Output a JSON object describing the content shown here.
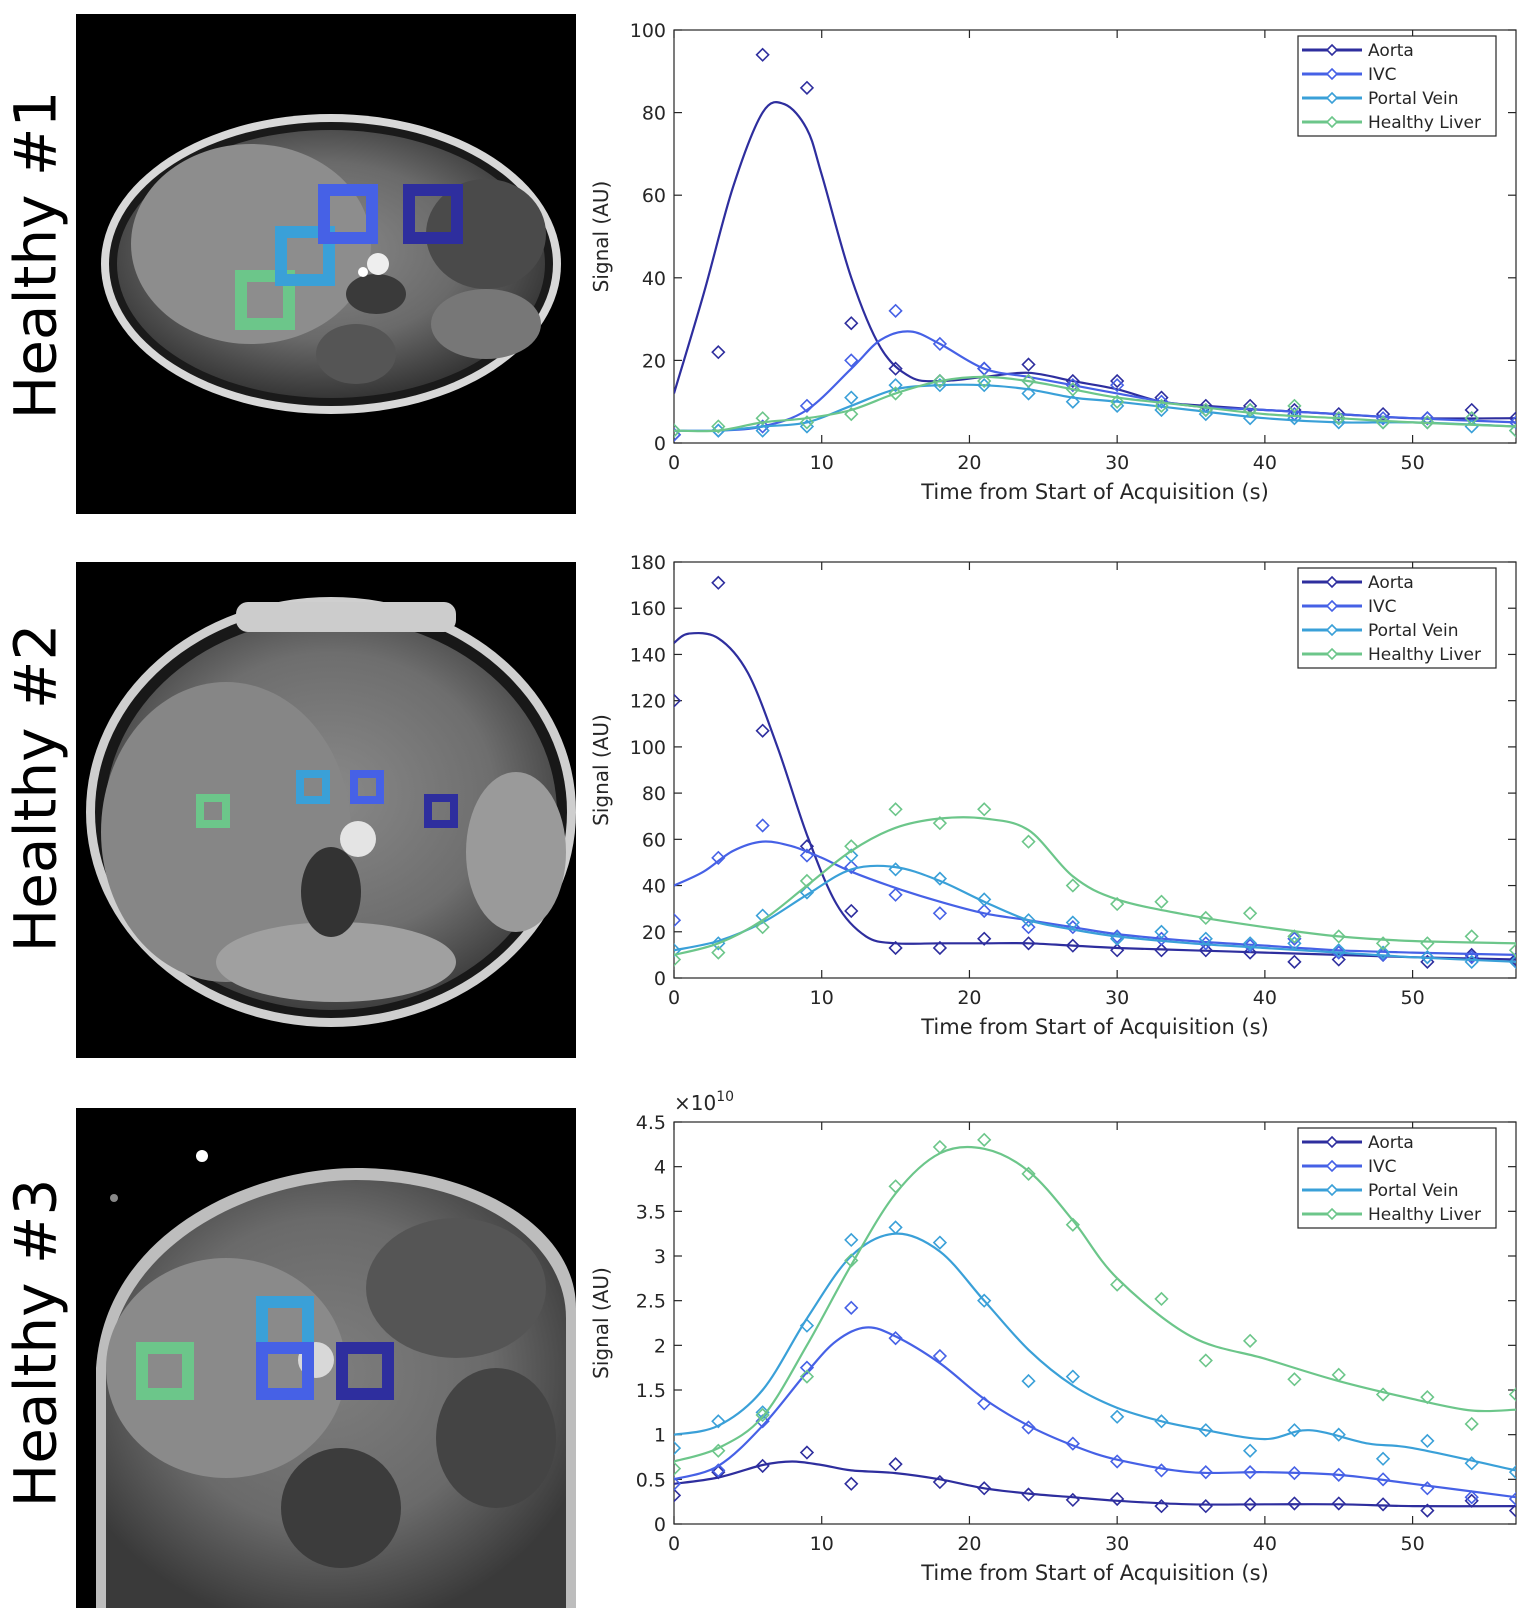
{
  "rows": [
    {
      "label": "Healthy #1"
    },
    {
      "label": "Healthy #2"
    },
    {
      "label": "Healthy #3"
    }
  ],
  "roi_colors": {
    "aorta": "#2e2e9e",
    "ivc": "#4661e6",
    "portal": "#3aa0d8",
    "liver": "#6cc68a"
  },
  "chart_data": [
    {
      "type": "line",
      "title": "",
      "xlabel": "Time from Start of Acquisition (s)",
      "ylabel": "Signal (AU)",
      "exponent_label": "",
      "xlim": [
        0,
        57
      ],
      "ylim": [
        0,
        100
      ],
      "xticks": [
        0,
        10,
        20,
        30,
        40,
        50
      ],
      "yticks": [
        0,
        20,
        40,
        60,
        80,
        100
      ],
      "ytick_labels": [
        "0",
        "20",
        "40",
        "60",
        "80",
        "100"
      ],
      "legend": [
        "Aorta",
        "IVC",
        "Portal Vein",
        "Healthy Liver"
      ],
      "legend_position": "top-right",
      "series": [
        {
          "name": "Aorta",
          "color": "#2e2e9e",
          "measured_x": [
            0,
            3,
            6,
            9,
            12,
            15,
            18,
            21,
            24,
            27,
            30,
            33,
            36,
            39,
            42,
            45,
            48,
            51,
            54,
            57
          ],
          "measured_y": [
            2,
            22,
            94,
            86,
            29,
            18,
            15,
            18,
            19,
            15,
            15,
            11,
            9,
            9,
            8,
            7,
            7,
            6,
            8,
            6
          ],
          "fit_x": [
            0,
            2,
            4,
            6,
            7.5,
            9,
            10,
            12,
            14,
            16,
            18,
            21,
            24,
            27,
            30,
            33,
            36,
            40,
            45,
            50,
            57
          ],
          "fit_y": [
            12,
            36,
            62,
            80,
            82,
            76,
            65,
            40,
            23,
            16,
            15,
            16,
            17,
            15,
            13,
            10,
            9,
            8,
            7,
            6,
            6
          ]
        },
        {
          "name": "IVC",
          "color": "#4661e6",
          "measured_x": [
            0,
            3,
            6,
            9,
            12,
            15,
            18,
            21,
            24,
            27,
            30,
            33,
            36,
            39,
            42,
            45,
            48,
            51,
            54,
            57
          ],
          "measured_y": [
            2,
            3,
            4,
            9,
            20,
            32,
            24,
            18,
            15,
            14,
            14,
            10,
            8,
            8,
            7,
            6,
            6,
            6,
            6,
            5
          ],
          "fit_x": [
            0,
            3,
            6,
            9,
            12,
            14,
            16,
            18,
            21,
            24,
            27,
            30,
            35,
            40,
            45,
            50,
            57
          ],
          "fit_y": [
            3,
            3,
            4,
            8,
            18,
            25,
            27,
            24,
            18,
            16,
            14,
            12,
            9,
            8,
            7,
            6,
            5
          ]
        },
        {
          "name": "Portal Vein",
          "color": "#3aa0d8",
          "measured_x": [
            0,
            3,
            6,
            9,
            12,
            15,
            18,
            21,
            24,
            27,
            30,
            33,
            36,
            39,
            42,
            45,
            48,
            51,
            54,
            57
          ],
          "measured_y": [
            3,
            3,
            3,
            4,
            11,
            14,
            14,
            14,
            12,
            10,
            9,
            8,
            7,
            6,
            6,
            5,
            5,
            5,
            4,
            3
          ],
          "fit_x": [
            0,
            3,
            6,
            9,
            12,
            15,
            18,
            21,
            24,
            27,
            30,
            35,
            40,
            45,
            50,
            57
          ],
          "fit_y": [
            3,
            3,
            4,
            5,
            9,
            13,
            14,
            14,
            13,
            11,
            10,
            8,
            6,
            5,
            5,
            4
          ]
        },
        {
          "name": "Healthy Liver",
          "color": "#6cc68a",
          "measured_x": [
            0,
            3,
            6,
            9,
            12,
            15,
            18,
            21,
            24,
            27,
            30,
            33,
            36,
            39,
            42,
            45,
            48,
            51,
            54,
            57
          ],
          "measured_y": [
            3,
            4,
            6,
            5,
            7,
            12,
            15,
            15,
            15,
            13,
            10,
            9,
            8,
            8,
            9,
            6,
            5,
            5,
            6,
            3
          ],
          "fit_x": [
            0,
            3,
            6,
            9,
            12,
            15,
            18,
            21,
            24,
            27,
            30,
            35,
            40,
            45,
            50,
            57
          ],
          "fit_y": [
            3,
            3,
            5,
            6,
            8,
            12,
            15,
            16,
            15,
            13,
            11,
            9,
            7,
            6,
            5,
            4
          ]
        }
      ]
    },
    {
      "type": "line",
      "title": "",
      "xlabel": "Time from Start of Acquisition (s)",
      "ylabel": "Signal (AU)",
      "exponent_label": "",
      "xlim": [
        0,
        57
      ],
      "ylim": [
        0,
        180
      ],
      "xticks": [
        0,
        10,
        20,
        30,
        40,
        50
      ],
      "yticks": [
        0,
        20,
        40,
        60,
        80,
        100,
        120,
        140,
        160,
        180
      ],
      "ytick_labels": [
        "0",
        "20",
        "40",
        "60",
        "80",
        "100",
        "120",
        "140",
        "160",
        "180"
      ],
      "legend": [
        "Aorta",
        "IVC",
        "Portal Vein",
        "Healthy Liver"
      ],
      "legend_position": "top-right",
      "series": [
        {
          "name": "Aorta",
          "color": "#2e2e9e",
          "measured_x": [
            0,
            3,
            6,
            9,
            12,
            15,
            18,
            21,
            24,
            27,
            30,
            33,
            36,
            39,
            42,
            45,
            48,
            51,
            54,
            57
          ],
          "measured_y": [
            120,
            171,
            107,
            57,
            29,
            13,
            13,
            17,
            15,
            14,
            12,
            12,
            12,
            11,
            7,
            8,
            10,
            7,
            10,
            8
          ],
          "fit_x": [
            0,
            1,
            3,
            5,
            7,
            9,
            11,
            13,
            15,
            18,
            21,
            24,
            27,
            30,
            35,
            40,
            45,
            50,
            57
          ],
          "fit_y": [
            145,
            149,
            147,
            132,
            100,
            62,
            32,
            18,
            15,
            15,
            15,
            15,
            14,
            13,
            12,
            11,
            10,
            9,
            8
          ]
        },
        {
          "name": "IVC",
          "color": "#4661e6",
          "measured_x": [
            0,
            3,
            6,
            9,
            12,
            15,
            18,
            21,
            24,
            27,
            30,
            33,
            36,
            39,
            42,
            45,
            48,
            51,
            54,
            57
          ],
          "measured_y": [
            25,
            52,
            66,
            53,
            48,
            36,
            28,
            29,
            22,
            22,
            18,
            17,
            15,
            14,
            17,
            11,
            10,
            9,
            9,
            7
          ],
          "fit_x": [
            0,
            2,
            4,
            6,
            8,
            10,
            12,
            15,
            18,
            21,
            24,
            27,
            30,
            35,
            40,
            45,
            50,
            57
          ],
          "fit_y": [
            40,
            46,
            55,
            59,
            57,
            52,
            46,
            39,
            33,
            28,
            25,
            22,
            19,
            16,
            14,
            12,
            11,
            10
          ]
        },
        {
          "name": "Portal Vein",
          "color": "#3aa0d8",
          "measured_x": [
            0,
            3,
            6,
            9,
            12,
            15,
            18,
            21,
            24,
            27,
            30,
            33,
            36,
            39,
            42,
            45,
            48,
            51,
            54,
            57
          ],
          "measured_y": [
            12,
            15,
            27,
            37,
            53,
            47,
            43,
            34,
            25,
            24,
            17,
            20,
            17,
            15,
            15,
            12,
            11,
            9,
            7,
            7
          ],
          "fit_x": [
            0,
            3,
            6,
            9,
            12,
            15,
            18,
            21,
            24,
            27,
            30,
            35,
            40,
            45,
            50,
            57
          ],
          "fit_y": [
            12,
            16,
            24,
            36,
            47,
            48,
            42,
            33,
            25,
            21,
            18,
            15,
            13,
            11,
            9,
            7
          ]
        },
        {
          "name": "Healthy Liver",
          "color": "#6cc68a",
          "measured_x": [
            0,
            3,
            6,
            9,
            12,
            15,
            18,
            21,
            24,
            27,
            30,
            33,
            36,
            39,
            42,
            45,
            48,
            51,
            54,
            57
          ],
          "measured_y": [
            8,
            11,
            22,
            42,
            57,
            73,
            67,
            73,
            59,
            40,
            32,
            33,
            26,
            28,
            18,
            18,
            15,
            15,
            18,
            12
          ],
          "fit_x": [
            0,
            3,
            6,
            9,
            12,
            15,
            18,
            21,
            24,
            27,
            30,
            35,
            40,
            45,
            50,
            57
          ],
          "fit_y": [
            10,
            15,
            25,
            40,
            55,
            65,
            69,
            69,
            64,
            44,
            34,
            27,
            22,
            18,
            16,
            15
          ]
        }
      ]
    },
    {
      "type": "line",
      "title": "",
      "xlabel": "Time from Start of Acquisition (s)",
      "ylabel": "Signal (AU)",
      "exponent_label": "×10^10",
      "xlim": [
        0,
        57
      ],
      "ylim": [
        0,
        4.5
      ],
      "xticks": [
        0,
        10,
        20,
        30,
        40,
        50
      ],
      "yticks": [
        0,
        0.5,
        1,
        1.5,
        2,
        2.5,
        3,
        3.5,
        4,
        4.5
      ],
      "ytick_labels": [
        "0",
        "0.5",
        "1",
        "1.5",
        "2",
        "2.5",
        "3",
        "3.5",
        "4",
        "4.5"
      ],
      "legend": [
        "Aorta",
        "IVC",
        "Portal Vein",
        "Healthy Liver"
      ],
      "legend_position": "top-right",
      "series": [
        {
          "name": "Aorta",
          "color": "#2e2e9e",
          "measured_x": [
            0,
            3,
            6,
            9,
            12,
            15,
            18,
            21,
            24,
            27,
            30,
            33,
            36,
            39,
            42,
            45,
            48,
            51,
            54,
            57
          ],
          "measured_y": [
            0.32,
            0.58,
            0.65,
            0.8,
            0.45,
            0.67,
            0.47,
            0.4,
            0.33,
            0.27,
            0.28,
            0.2,
            0.2,
            0.22,
            0.23,
            0.23,
            0.22,
            0.15,
            0.26,
            0.15
          ],
          "fit_x": [
            0,
            3,
            6,
            8,
            10,
            12,
            15,
            18,
            21,
            24,
            27,
            30,
            35,
            40,
            45,
            50,
            57
          ],
          "fit_y": [
            0.45,
            0.52,
            0.66,
            0.7,
            0.66,
            0.6,
            0.57,
            0.5,
            0.4,
            0.34,
            0.3,
            0.26,
            0.22,
            0.22,
            0.22,
            0.2,
            0.2
          ]
        },
        {
          "name": "IVC",
          "color": "#4661e6",
          "measured_x": [
            0,
            3,
            6,
            9,
            12,
            15,
            18,
            21,
            24,
            27,
            30,
            33,
            36,
            39,
            42,
            45,
            48,
            51,
            54,
            57
          ],
          "measured_y": [
            0.45,
            0.6,
            1.15,
            1.75,
            2.42,
            2.08,
            1.88,
            1.35,
            1.08,
            0.9,
            0.7,
            0.6,
            0.58,
            0.58,
            0.57,
            0.55,
            0.5,
            0.4,
            0.3,
            0.28
          ],
          "fit_x": [
            0,
            3,
            6,
            9,
            11,
            13,
            15,
            18,
            21,
            24,
            27,
            30,
            35,
            40,
            45,
            50,
            57
          ],
          "fit_y": [
            0.5,
            0.65,
            1.1,
            1.7,
            2.05,
            2.2,
            2.1,
            1.8,
            1.4,
            1.1,
            0.88,
            0.72,
            0.58,
            0.58,
            0.55,
            0.45,
            0.3
          ]
        },
        {
          "name": "Portal Vein",
          "color": "#3aa0d8",
          "measured_x": [
            0,
            3,
            6,
            9,
            12,
            15,
            18,
            21,
            24,
            27,
            30,
            33,
            36,
            39,
            42,
            45,
            48,
            51,
            54,
            57
          ],
          "measured_y": [
            0.85,
            1.15,
            1.25,
            2.22,
            3.18,
            3.32,
            3.15,
            2.5,
            1.6,
            1.65,
            1.2,
            1.15,
            1.05,
            0.82,
            1.05,
            1.0,
            0.73,
            0.93,
            0.68,
            0.58
          ],
          "fit_x": [
            0,
            3,
            6,
            9,
            12,
            15,
            18,
            21,
            24,
            27,
            30,
            33,
            36,
            40,
            43,
            47,
            50,
            57
          ],
          "fit_y": [
            1.0,
            1.1,
            1.5,
            2.3,
            3.0,
            3.25,
            3.05,
            2.5,
            1.95,
            1.55,
            1.3,
            1.15,
            1.05,
            0.95,
            1.05,
            0.9,
            0.85,
            0.6
          ]
        },
        {
          "name": "Healthy Liver",
          "color": "#6cc68a",
          "measured_x": [
            0,
            3,
            6,
            9,
            12,
            15,
            18,
            21,
            24,
            27,
            30,
            33,
            36,
            39,
            42,
            45,
            48,
            51,
            54,
            57
          ],
          "measured_y": [
            0.62,
            0.82,
            1.22,
            1.65,
            2.95,
            3.78,
            4.22,
            4.3,
            3.92,
            3.35,
            2.68,
            2.52,
            1.83,
            2.05,
            1.62,
            1.67,
            1.45,
            1.42,
            1.12,
            1.45
          ],
          "fit_x": [
            0,
            3,
            6,
            9,
            12,
            15,
            18,
            21,
            24,
            27,
            30,
            35,
            40,
            45,
            50,
            54,
            57
          ],
          "fit_y": [
            0.7,
            0.85,
            1.2,
            2.0,
            2.9,
            3.7,
            4.15,
            4.2,
            3.95,
            3.4,
            2.75,
            2.1,
            1.85,
            1.6,
            1.4,
            1.27,
            1.28
          ]
        }
      ]
    }
  ]
}
